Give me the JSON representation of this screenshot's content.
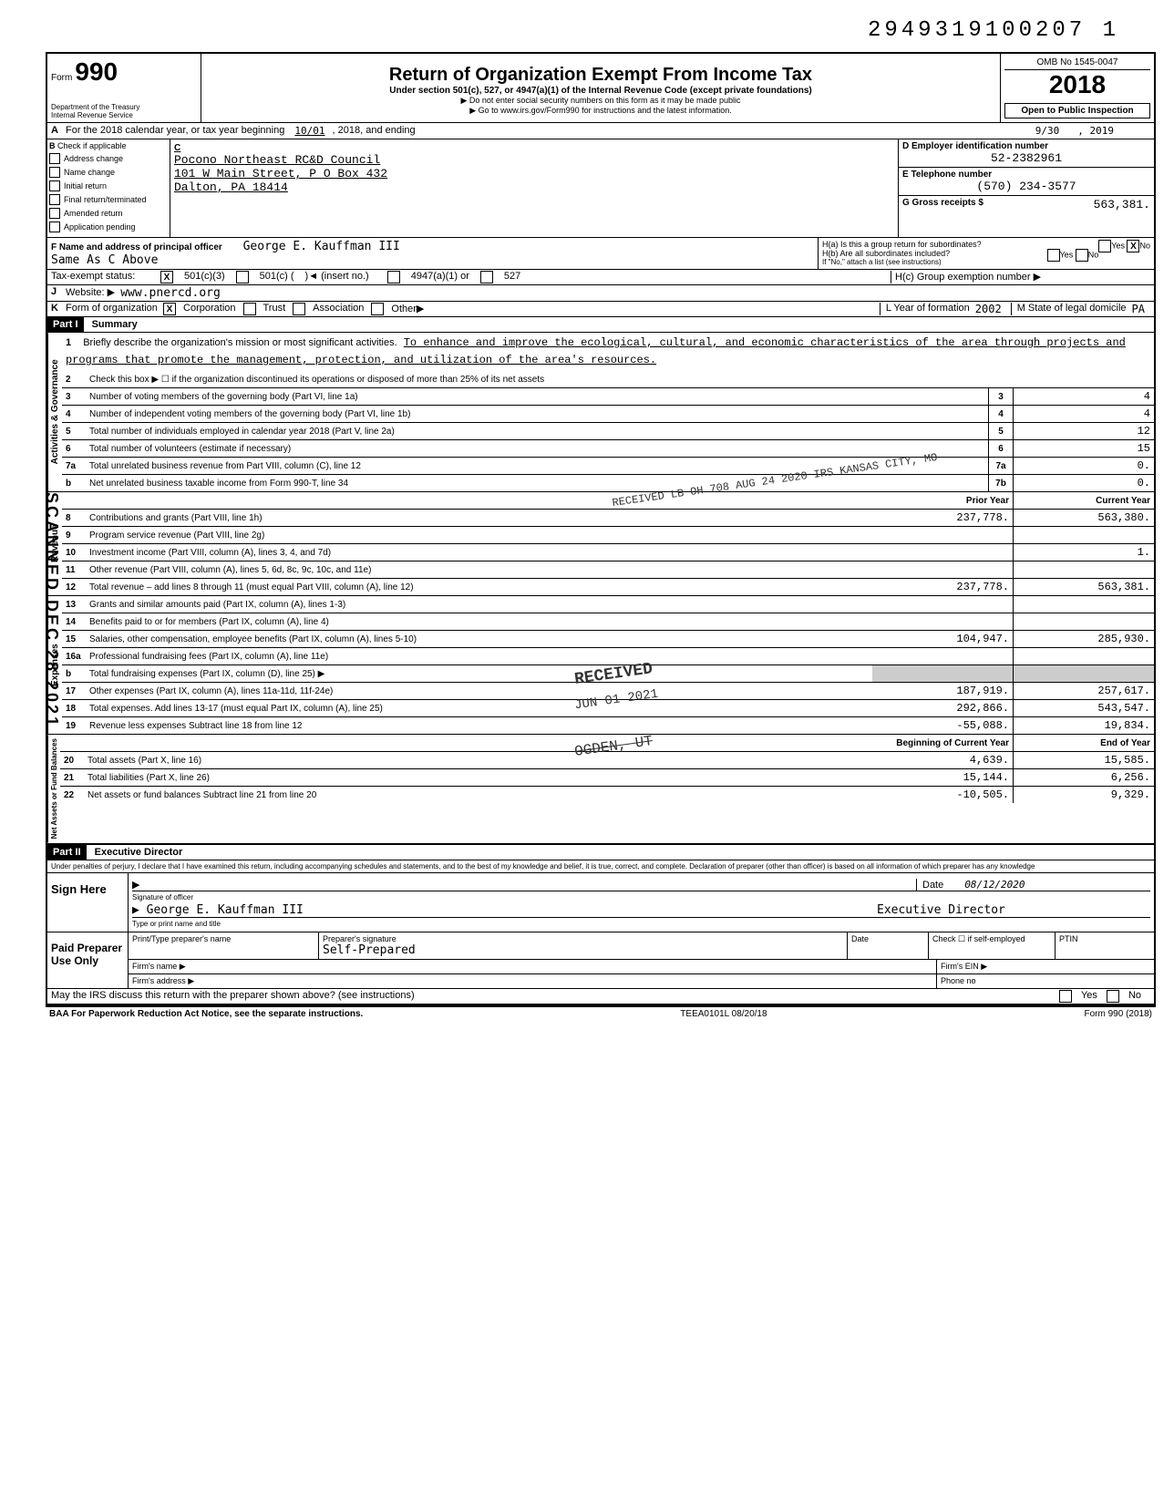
{
  "dln": "2949319100207 1",
  "header": {
    "form_prefix": "Form",
    "form_number": "990",
    "title": "Return of Organization Exempt From Income Tax",
    "subtitle": "Under section 501(c), 527, or 4947(a)(1) of the Internal Revenue Code (except private foundations)",
    "note1": "▶ Do not enter social security numbers on this form as it may be made public",
    "note2": "▶ Go to www.irs.gov/Form990 for instructions and the latest information.",
    "dept": "Department of the Treasury\nInternal Revenue Service",
    "omb": "OMB No 1545-0047",
    "year": "2018",
    "open": "Open to Public Inspection"
  },
  "lineA": {
    "prefix": "A",
    "text": "For the 2018 calendar year, or tax year beginning",
    "begin": "10/01",
    "mid": ", 2018, and ending",
    "end_month": "9/30",
    "end_year": ", 2019"
  },
  "boxB": {
    "label": "B",
    "check": "Check if applicable",
    "items": [
      "Address change",
      "Name change",
      "Initial return",
      "Final return/terminated",
      "Amended return",
      "Application pending"
    ]
  },
  "boxC": {
    "label": "C",
    "name": "Pocono Northeast RC&D Council",
    "addr1": "101 W Main Street, P O Box 432",
    "addr2": "Dalton, PA 18414"
  },
  "boxD": {
    "label": "D Employer identification number",
    "value": "52-2382961"
  },
  "boxE": {
    "label": "E Telephone number",
    "value": "(570) 234-3577"
  },
  "boxG": {
    "label": "G Gross receipts $",
    "value": "563,381."
  },
  "boxF": {
    "label": "F Name and address of principal officer",
    "name": "George E. Kauffman III",
    "addr": "Same As C Above"
  },
  "boxH": {
    "ha": "H(a) Is this a group return for subordinates?",
    "hb": "H(b) Are all subordinates included?",
    "hb_note": "If \"No,\" attach a list (see instructions)",
    "hc": "H(c) Group exemption number ▶",
    "no_checked": "X"
  },
  "lineI": {
    "label": "Tax-exempt status:",
    "opt1": "501(c)(3)",
    "opt1_checked": "X",
    "opt2": "501(c) (",
    "opt2_insert": ")◄ (insert no.)",
    "opt3": "4947(a)(1) or",
    "opt4": "527"
  },
  "lineJ": {
    "label": "J",
    "text": "Website: ▶",
    "value": "www.pnercd.org"
  },
  "lineK": {
    "label": "K",
    "text": "Form of organization",
    "corp": "Corporation",
    "corp_checked": "X",
    "trust": "Trust",
    "assoc": "Association",
    "other": "Other▶",
    "yof_label": "L Year of formation",
    "yof": "2002",
    "state_label": "M State of legal domicile",
    "state": "PA"
  },
  "part1": {
    "header": "Part I",
    "title": "Summary",
    "line1_label": "Briefly describe the organization's mission or most significant activities.",
    "mission": "To enhance and improve the ecological, cultural, and economic characteristics of the area through projects and programs that promote the management, protection, and utilization of the area's resources.",
    "sections": {
      "gov": "Activities & Governance",
      "rev": "Revenue",
      "exp": "Expenses",
      "net": "Net Assets or Fund Balances"
    },
    "gov_rows": [
      {
        "n": "2",
        "label": "Check this box ▶ ☐ if the organization discontinued its operations or disposed of more than 25% of its net assets"
      },
      {
        "n": "3",
        "label": "Number of voting members of the governing body (Part VI, line 1a)",
        "col": "3",
        "cur": "4"
      },
      {
        "n": "4",
        "label": "Number of independent voting members of the governing body (Part VI, line 1b)",
        "col": "4",
        "cur": "4"
      },
      {
        "n": "5",
        "label": "Total number of individuals employed in calendar year 2018 (Part V, line 2a)",
        "col": "5",
        "cur": "12"
      },
      {
        "n": "6",
        "label": "Total number of volunteers (estimate if necessary)",
        "col": "6",
        "cur": "15"
      },
      {
        "n": "7a",
        "label": "Total unrelated business revenue from Part VIII, column (C), line 12",
        "col": "7a",
        "cur": "0."
      },
      {
        "n": "b",
        "label": "Net unrelated business taxable income from Form 990-T, line 34",
        "col": "7b",
        "cur": "0."
      }
    ],
    "col_headers": {
      "prior": "Prior Year",
      "current": "Current Year"
    },
    "rev_rows": [
      {
        "n": "8",
        "label": "Contributions and grants (Part VIII, line 1h)",
        "prior": "237,778.",
        "cur": "563,380."
      },
      {
        "n": "9",
        "label": "Program service revenue (Part VIII, line 2g)",
        "prior": "",
        "cur": ""
      },
      {
        "n": "10",
        "label": "Investment income (Part VIII, column (A), lines 3, 4, and 7d)",
        "prior": "",
        "cur": "1."
      },
      {
        "n": "11",
        "label": "Other revenue (Part VIII, column (A), lines 5, 6d, 8c, 9c, 10c, and 11e)",
        "prior": "",
        "cur": ""
      },
      {
        "n": "12",
        "label": "Total revenue – add lines 8 through 11 (must equal Part VIII, column (A), line 12)",
        "prior": "237,778.",
        "cur": "563,381."
      }
    ],
    "exp_rows": [
      {
        "n": "13",
        "label": "Grants and similar amounts paid (Part IX, column (A), lines 1-3)",
        "prior": "",
        "cur": ""
      },
      {
        "n": "14",
        "label": "Benefits paid to or for members (Part IX, column (A), line 4)",
        "prior": "",
        "cur": ""
      },
      {
        "n": "15",
        "label": "Salaries, other compensation, employee benefits (Part IX, column (A), lines 5-10)",
        "prior": "104,947.",
        "cur": "285,930."
      },
      {
        "n": "16a",
        "label": "Professional fundraising fees (Part IX, column (A), line 11e)",
        "prior": "",
        "cur": ""
      },
      {
        "n": "b",
        "label": "Total fundraising expenses (Part IX, column (D), line 25) ▶",
        "prior": "",
        "cur": "",
        "gray": true
      },
      {
        "n": "17",
        "label": "Other expenses (Part IX, column (A), lines 11a-11d, 11f-24e)",
        "prior": "187,919.",
        "cur": "257,617."
      },
      {
        "n": "18",
        "label": "Total expenses. Add lines 13-17 (must equal Part IX, column (A), line 25)",
        "prior": "292,866.",
        "cur": "543,547."
      },
      {
        "n": "19",
        "label": "Revenue less expenses Subtract line 18 from line 12",
        "prior": "-55,088.",
        "cur": "19,834."
      }
    ],
    "net_headers": {
      "prior": "Beginning of Current Year",
      "current": "End of Year"
    },
    "net_rows": [
      {
        "n": "20",
        "label": "Total assets (Part X, line 16)",
        "prior": "4,639.",
        "cur": "15,585."
      },
      {
        "n": "21",
        "label": "Total liabilities (Part X, line 26)",
        "prior": "15,144.",
        "cur": "6,256."
      },
      {
        "n": "22",
        "label": "Net assets or fund balances Subtract line 21 from line 20",
        "prior": "-10,505.",
        "cur": "9,329."
      }
    ]
  },
  "part2": {
    "header": "Part II",
    "title": "Executive Director",
    "perjury": "Under penalties of perjury, I declare that I have examined this return, including accompanying schedules and statements, and to the best of my knowledge and belief, it is true, correct, and complete. Declaration of preparer (other than officer) is based on all information of which preparer has any knowledge",
    "sign_here": "Sign Here",
    "sig_officer": "Signature of officer",
    "date_label": "Date",
    "date": "08/12/2020",
    "name": "George E. Kauffman III",
    "type_print": "Type or print name and title",
    "paid": "Paid Preparer Use Only",
    "prep_name": "Print/Type preparer's name",
    "prep_sig": "Preparer's signature",
    "self_prep": "Self-Prepared",
    "check_if": "Check ☐ if self-employed",
    "ptin": "PTIN",
    "firm_name": "Firm's name ▶",
    "firm_addr": "Firm's address ▶",
    "firm_ein": "Firm's EIN ▶",
    "phone": "Phone no",
    "discuss": "May the IRS discuss this return with the preparer shown above? (see instructions)",
    "yes": "Yes",
    "no": "No"
  },
  "footer": {
    "baa": "BAA For Paperwork Reduction Act Notice, see the separate instructions.",
    "code": "TEEA0101L 08/20/18",
    "form": "Form 990 (2018)"
  },
  "stamps": {
    "scanned": "SCANNED DEC 28 2021",
    "received1": "RECEIVED LB OH 708 AUG 24 2020 IRS KANSAS CITY, MO",
    "received2": "RECEIVED",
    "received3": "JUN 01 2021",
    "received4": "OGDEN, UT"
  }
}
